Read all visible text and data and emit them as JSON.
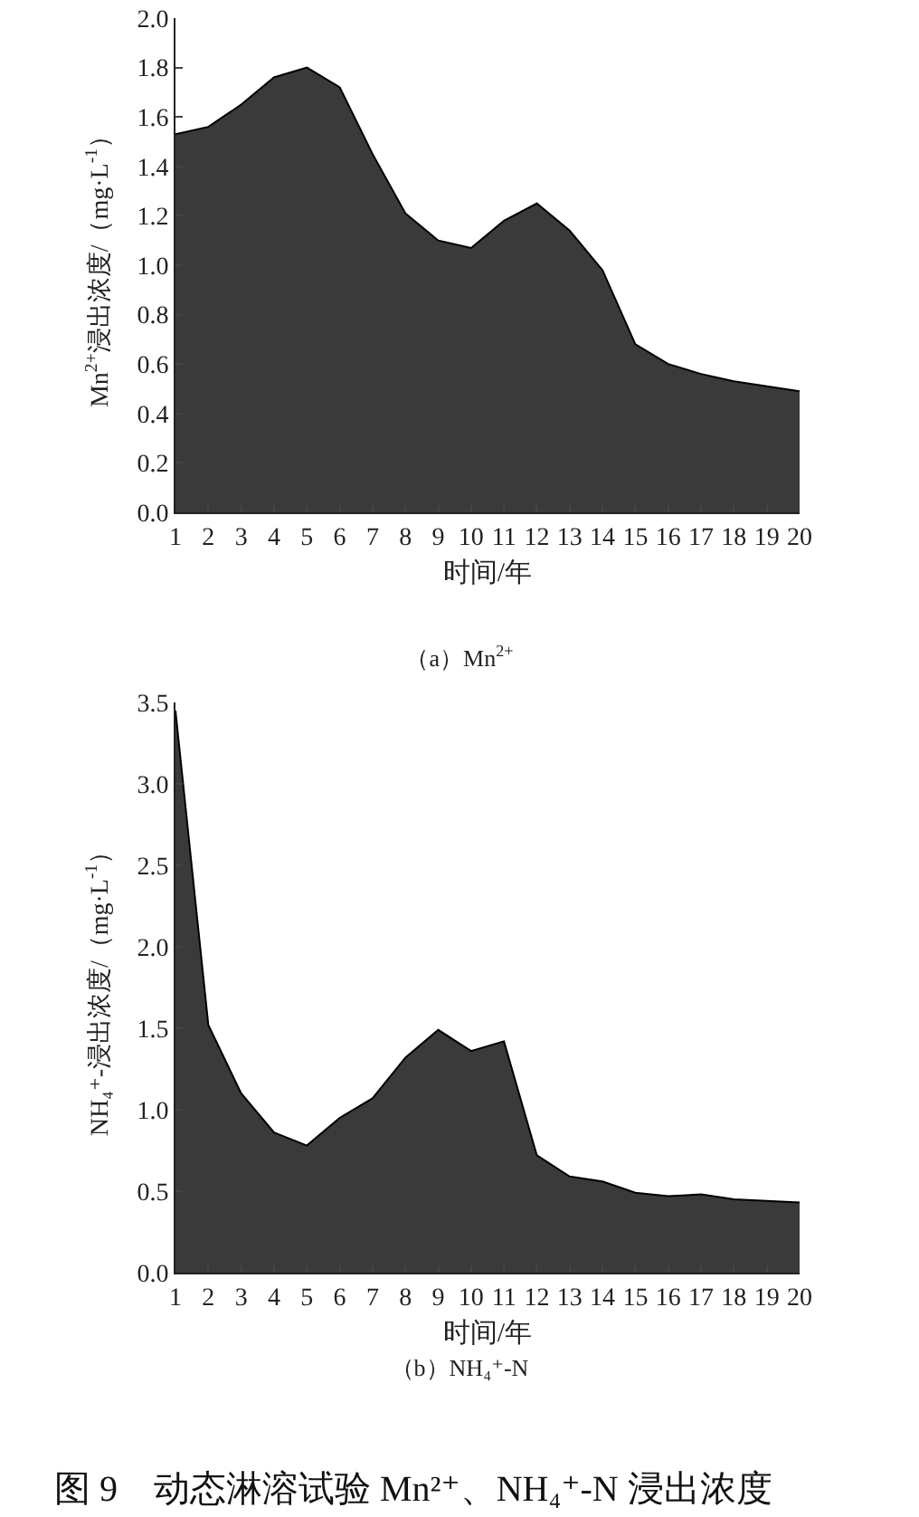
{
  "chart_data": [
    {
      "type": "area",
      "title": "（a）Mn$^{2+}$",
      "xlabel": "时间/年",
      "ylabel": "Mn$^{2+}$浸出浓度/（mg·L$^{-1}$）",
      "x": [
        1,
        2,
        3,
        4,
        5,
        6,
        7,
        8,
        9,
        10,
        11,
        12,
        13,
        14,
        15,
        16,
        17,
        18,
        19,
        20
      ],
      "series": [
        {
          "color": "#3a3a3a",
          "values": [
            1.53,
            1.56,
            1.65,
            1.76,
            1.8,
            1.72,
            1.45,
            1.21,
            1.1,
            1.07,
            1.18,
            1.25,
            1.14,
            0.98,
            0.68,
            0.6,
            0.56,
            0.53,
            0.51,
            0.49
          ]
        }
      ],
      "xlim": [
        1,
        20
      ],
      "xticks": [
        1,
        2,
        3,
        4,
        5,
        6,
        7,
        8,
        9,
        10,
        11,
        12,
        13,
        14,
        15,
        16,
        17,
        18,
        19,
        20
      ],
      "ylim": [
        0,
        2
      ],
      "yticks": [
        {
          "value": 0,
          "label": "0.0"
        },
        0.2,
        0.4,
        0.6,
        0.8,
        {
          "value": 1,
          "label": "1.0"
        },
        1.2,
        1.4,
        1.6,
        1.8,
        {
          "value": 2,
          "label": "2.0"
        }
      ],
      "grid": false
    },
    {
      "type": "area",
      "title": "（b）NH₄⁺-N",
      "xlabel": "时间/年",
      "ylabel": "NH₄⁺-浸出浓度/（mg·L$^{-1}$）",
      "x": [
        1,
        2,
        3,
        4,
        5,
        6,
        7,
        8,
        9,
        10,
        11,
        12,
        13,
        14,
        15,
        16,
        17,
        18,
        19,
        20
      ],
      "series": [
        {
          "color": "#3a3a3a",
          "values": [
            3.45,
            1.52,
            1.1,
            0.86,
            0.78,
            0.95,
            1.07,
            1.32,
            1.49,
            1.36,
            1.42,
            0.72,
            0.59,
            0.56,
            0.49,
            0.47,
            0.48,
            0.45,
            0.44,
            0.43
          ]
        }
      ],
      "xlim": [
        1,
        20
      ],
      "xticks": [
        1,
        2,
        3,
        4,
        5,
        6,
        7,
        8,
        9,
        10,
        11,
        12,
        13,
        14,
        15,
        16,
        17,
        18,
        19,
        20
      ],
      "ylim": [
        0,
        3.5
      ],
      "yticks": [
        {
          "value": 0,
          "label": "0.0"
        },
        0.5,
        {
          "value": 1,
          "label": "1.0"
        },
        1.5,
        {
          "value": 2,
          "label": "2.0"
        },
        2.5,
        {
          "value": 3,
          "label": "3.0"
        },
        3.5
      ],
      "grid": false,
      "annotations": [
        "图 9　动态淋溶试验 Mn²⁺、NH₄⁺-N 浸出浓度"
      ]
    }
  ]
}
